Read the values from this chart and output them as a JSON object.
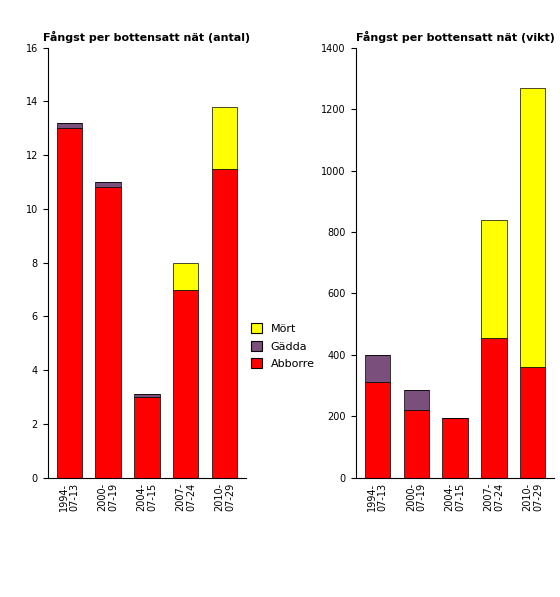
{
  "categories": [
    "1994-\n07-13",
    "2000-\n07-19",
    "2004-\n07-15",
    "2007-\n07-24",
    "2010-\n07-29"
  ],
  "antal": {
    "Abborre": [
      13.0,
      10.8,
      3.0,
      7.0,
      11.5
    ],
    "Gädda": [
      0.2,
      0.2,
      0.1,
      0.0,
      0.0
    ],
    "Mört": [
      0.0,
      0.0,
      0.0,
      1.0,
      2.3
    ]
  },
  "vikt": {
    "Abborre": [
      310,
      220,
      195,
      455,
      360
    ],
    "Gädda": [
      90,
      65,
      0,
      0,
      0
    ],
    "Mört": [
      0,
      0,
      0,
      385,
      910
    ]
  },
  "colors": {
    "Abborre": "#FF0000",
    "Gädda": "#7B4F7B",
    "Mört": "#FFFF00"
  },
  "title_antal": "Fångst per bottensatt nät (antal)",
  "title_vikt": "Fångst per bottensatt nät (vikt)",
  "ylim_antal": [
    0,
    16
  ],
  "ylim_vikt": [
    0,
    1400
  ],
  "yticks_antal": [
    0,
    2,
    4,
    6,
    8,
    10,
    12,
    14,
    16
  ],
  "yticks_vikt": [
    0,
    200,
    400,
    600,
    800,
    1000,
    1200,
    1400
  ],
  "legend_labels": [
    "Mört",
    "Gädda",
    "Abborre"
  ],
  "background_color": "#FFFFFF",
  "bar_width": 0.65
}
